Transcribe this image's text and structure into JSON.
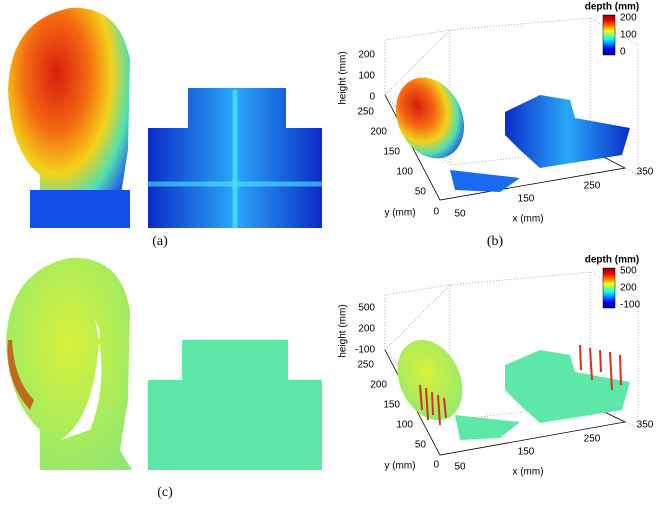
{
  "panels": [
    {
      "label": "(a)"
    },
    {
      "label": "(b)",
      "colorbar_title": "depth (mm)",
      "colorbar_ticks": [
        "200",
        "100",
        "0"
      ],
      "z_label": "height (mm)",
      "z_ticks": [
        "200",
        "100",
        "0"
      ],
      "y_label": "y (mm)",
      "y_ticks": [
        "250",
        "200",
        "150",
        "100",
        "50",
        "0"
      ],
      "x_label": "x (mm)",
      "x_ticks": [
        "50",
        "150",
        "250",
        "350"
      ]
    },
    {
      "label": "(c)",
      "colorbar_title": "depth (mm)",
      "colorbar_ticks": [
        "500",
        "200",
        "-100"
      ],
      "z_label": "height (mm)",
      "z_ticks": [
        "500",
        "200",
        "-100"
      ],
      "y_label": "y (mm)",
      "y_ticks": [
        "250",
        "200",
        "150",
        "100",
        "50",
        "0"
      ],
      "x_label": "x (mm)",
      "x_ticks": [
        "50",
        "150",
        "250",
        "350"
      ]
    }
  ]
}
